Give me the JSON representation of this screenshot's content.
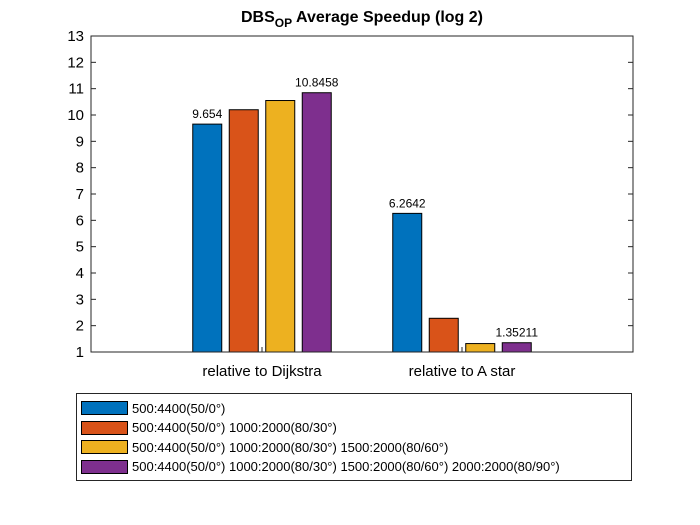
{
  "chart_data": {
    "type": "bar",
    "title": "DBS",
    "title_subscript": "OP",
    "title_suffix": " Average Speedup (log 2)",
    "categories": [
      "relative to Dijkstra",
      "relative to A star"
    ],
    "series": [
      {
        "name": "500:4400(50/0°)",
        "color": "#0072BD",
        "values": [
          9.654,
          6.2642
        ]
      },
      {
        "name": "500:4400(50/0°) 1000:2000(80/30°)",
        "color": "#D95319",
        "values": [
          10.2,
          2.28
        ]
      },
      {
        "name": "500:4400(50/0°) 1000:2000(80/30°) 1500:2000(80/60°)",
        "color": "#EDB120",
        "values": [
          10.55,
          1.32
        ]
      },
      {
        "name": "500:4400(50/0°) 1000:2000(80/30°) 1500:2000(80/60°) 2000:2000(80/90°)",
        "color": "#7E2F8E",
        "values": [
          10.8458,
          1.35211
        ]
      }
    ],
    "data_labels": [
      {
        "series": 0,
        "category": 0,
        "text": "9.654"
      },
      {
        "series": 3,
        "category": 0,
        "text": "10.8458"
      },
      {
        "series": 0,
        "category": 1,
        "text": "6.2642"
      },
      {
        "series": 3,
        "category": 1,
        "text": "1.35211"
      }
    ],
    "yticks": [
      "1",
      "2",
      "3",
      "4",
      "5",
      "6",
      "7",
      "8",
      "9",
      "10",
      "11",
      "12",
      "13"
    ],
    "ylim": [
      1,
      13
    ],
    "grid": false,
    "legend_position": "below"
  }
}
